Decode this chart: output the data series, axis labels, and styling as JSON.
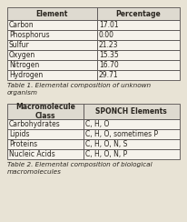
{
  "table1_headers": [
    "Element",
    "Percentage"
  ],
  "table1_rows": [
    [
      "Carbon",
      "17.01"
    ],
    [
      "Phosphorus",
      "0.00"
    ],
    [
      "Sulfur",
      "21.23"
    ],
    [
      "Oxygen",
      "15.35"
    ],
    [
      "Nitrogen",
      "16.70"
    ],
    [
      "Hydrogen",
      "29.71"
    ]
  ],
  "table1_caption": "Table 1. Elemental composition of unknown\norganism",
  "table2_headers": [
    "Macromolecule\nClass",
    "SPONCH Elements"
  ],
  "table2_rows": [
    [
      "Carbohydrates",
      "C, H, O"
    ],
    [
      "Lipids",
      "C, H, O, sometimes P"
    ],
    [
      "Proteins",
      "C, H, O, N, S"
    ],
    [
      "Nucleic Acids",
      "C, H, O, N, P"
    ]
  ],
  "table2_caption": "Table 2. Elemental composition of biological\nmacromolecules",
  "bg_color": "#e8e3d5",
  "cell_color": "#f5f2eb",
  "header_color": "#dedad0",
  "font_size": 5.5,
  "caption_font_size": 5.2,
  "text_color": "#2a2620"
}
